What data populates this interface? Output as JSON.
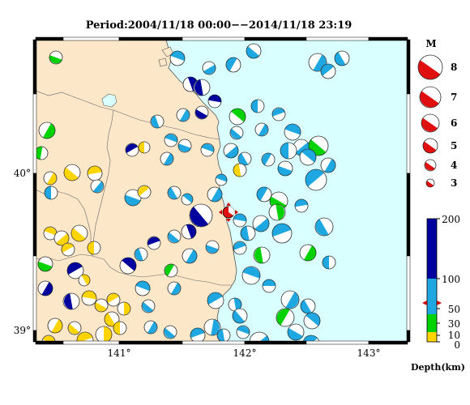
{
  "title": "Period:2004/11/18 00:00−−2014/11/18 23:19",
  "axes": {
    "lon_ticks": [
      "141°",
      "142°",
      "143°"
    ],
    "lat_ticks": [
      "40°",
      "39°"
    ]
  },
  "magnitude_legend": {
    "title": "M",
    "levels": [
      "8",
      "7",
      "6",
      "5",
      "4",
      "3"
    ]
  },
  "depth_scale": {
    "title": "Depth(km)",
    "ticks": [
      "200",
      "100",
      "50",
      "30",
      "10",
      "0"
    ],
    "colors": {
      "shallow": "#ffd400",
      "mid_shallow": "#00d200",
      "intermediate": "#1ea7e0",
      "deep": "#00009e"
    }
  },
  "colors": {
    "land": "#fce7c9",
    "sea": "#d9ffff",
    "highlight_event": "#e01010"
  }
}
